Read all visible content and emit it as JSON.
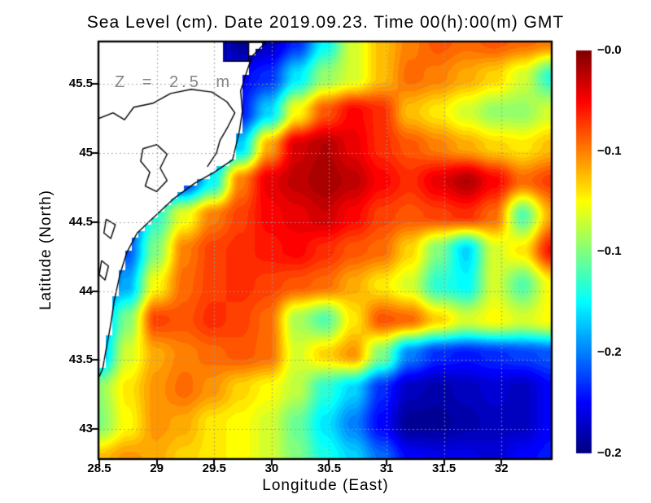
{
  "window": {
    "background": "#ffffff"
  },
  "chart_data": {
    "type": "heatmap",
    "title": "Sea Level (cm). Date 2019.09.23. Time 00(h):00(m) GMT",
    "annotation": "Z = 2.5 m",
    "xlabel": "Longitude (East)",
    "ylabel": "Latitude (North)",
    "x_axis": {
      "range": [
        28.5,
        32.43
      ],
      "ticks": [
        {
          "v": 28.5,
          "label": "28.5"
        },
        {
          "v": 29,
          "label": "29"
        },
        {
          "v": 29.5,
          "label": "29.5"
        },
        {
          "v": 30,
          "label": "30"
        },
        {
          "v": 30.5,
          "label": "30.5"
        },
        {
          "v": 31,
          "label": "31"
        },
        {
          "v": 31.5,
          "label": "31.5"
        },
        {
          "v": 32,
          "label": "32"
        }
      ]
    },
    "y_axis": {
      "range": [
        42.79,
        45.8
      ],
      "ticks": [
        {
          "v": 43,
          "label": "43"
        },
        {
          "v": 43.5,
          "label": "43.5"
        },
        {
          "v": 44,
          "label": "44"
        },
        {
          "v": 44.5,
          "label": "44.5"
        },
        {
          "v": 45,
          "label": "45"
        },
        {
          "v": 45.5,
          "label": "45.5"
        }
      ]
    },
    "colorbar": {
      "labels": [
        "−0.0",
        "−0.1",
        "−0.1",
        "−0.2",
        "−0.2"
      ],
      "vmin": -0.24,
      "vmax": 0,
      "colormap": "jet"
    },
    "grid": {
      "ncols": 17,
      "nrows": 13,
      "lon_range": [
        28.5,
        32.43
      ],
      "lat_range": [
        45.8,
        42.79
      ],
      "values": [
        [
          -0.21,
          -0.21,
          -0.21,
          -0.21,
          -0.21,
          -0.235,
          -0.225,
          -0.2,
          -0.15,
          -0.1,
          -0.075,
          -0.06,
          -0.05,
          -0.055,
          -0.05,
          -0.055,
          -0.06
        ],
        [
          -0.21,
          -0.21,
          -0.21,
          -0.21,
          -0.21,
          -0.21,
          -0.2,
          -0.155,
          -0.115,
          -0.1,
          -0.075,
          -0.055,
          -0.06,
          -0.07,
          -0.08,
          -0.1,
          -0.14
        ],
        [
          -0.21,
          -0.21,
          -0.21,
          -0.21,
          -0.21,
          -0.205,
          -0.16,
          -0.09,
          -0.05,
          -0.03,
          -0.04,
          -0.075,
          -0.085,
          -0.1,
          -0.115,
          -0.115,
          -0.1
        ],
        [
          -0.2,
          -0.2,
          -0.2,
          -0.2,
          -0.2,
          -0.16,
          -0.07,
          -0.02,
          -0.012,
          -0.025,
          -0.04,
          -0.05,
          -0.06,
          -0.07,
          -0.08,
          -0.085,
          -0.075
        ],
        [
          -0.2,
          -0.2,
          -0.2,
          -0.2,
          -0.15,
          -0.06,
          -0.025,
          -0.015,
          -0.008,
          -0.015,
          -0.03,
          -0.04,
          -0.025,
          -0.012,
          -0.03,
          -0.055,
          -0.045
        ],
        [
          -0.2,
          -0.2,
          -0.14,
          -0.095,
          -0.06,
          -0.045,
          -0.03,
          -0.025,
          -0.018,
          -0.03,
          -0.045,
          -0.05,
          -0.045,
          -0.04,
          -0.055,
          -0.13,
          -0.07
        ],
        [
          -0.2,
          -0.19,
          -0.12,
          -0.06,
          -0.045,
          -0.04,
          -0.035,
          -0.03,
          -0.04,
          -0.05,
          -0.055,
          -0.08,
          -0.12,
          -0.16,
          -0.1,
          -0.085,
          -0.035
        ],
        [
          -0.19,
          -0.17,
          -0.09,
          -0.055,
          -0.045,
          -0.04,
          -0.045,
          -0.05,
          -0.055,
          -0.07,
          -0.085,
          -0.1,
          -0.14,
          -0.15,
          -0.1,
          -0.13,
          -0.09
        ],
        [
          -0.18,
          -0.12,
          -0.045,
          -0.05,
          -0.04,
          -0.045,
          -0.055,
          -0.11,
          -0.13,
          -0.085,
          -0.05,
          -0.055,
          -0.08,
          -0.1,
          -0.09,
          -0.1,
          -0.09
        ],
        [
          -0.17,
          -0.1,
          -0.07,
          -0.06,
          -0.055,
          -0.05,
          -0.055,
          -0.1,
          -0.08,
          -0.065,
          -0.12,
          -0.18,
          -0.2,
          -0.205,
          -0.2,
          -0.195,
          -0.19
        ],
        [
          -0.115,
          -0.085,
          -0.065,
          -0.055,
          -0.065,
          -0.08,
          -0.09,
          -0.105,
          -0.14,
          -0.16,
          -0.2,
          -0.225,
          -0.23,
          -0.225,
          -0.22,
          -0.225,
          -0.21
        ],
        [
          -0.12,
          -0.09,
          -0.065,
          -0.07,
          -0.085,
          -0.09,
          -0.1,
          -0.125,
          -0.155,
          -0.18,
          -0.21,
          -0.235,
          -0.235,
          -0.23,
          -0.225,
          -0.225,
          -0.21
        ],
        [
          -0.075,
          -0.065,
          -0.07,
          -0.08,
          -0.085,
          -0.09,
          -0.1,
          -0.12,
          -0.145,
          -0.16,
          -0.185,
          -0.21,
          -0.215,
          -0.215,
          -0.22,
          -0.21,
          -0.205
        ]
      ]
    },
    "coastline": {
      "land_polygon": [
        [
          28.5,
          45.8
        ],
        [
          29.6,
          45.8
        ],
        [
          29.6,
          45.665
        ],
        [
          29.8,
          45.665
        ],
        [
          29.8,
          45.8
        ],
        [
          29.95,
          45.8
        ],
        [
          29.83,
          45.7
        ],
        [
          29.78,
          45.58
        ],
        [
          29.73,
          45.45
        ],
        [
          29.745,
          45.3
        ],
        [
          29.72,
          45.16
        ],
        [
          29.66,
          44.95
        ],
        [
          29.5,
          44.86
        ],
        [
          29.33,
          44.78
        ],
        [
          29.15,
          44.67
        ],
        [
          28.97,
          44.53
        ],
        [
          28.83,
          44.42
        ],
        [
          28.74,
          44.28
        ],
        [
          28.68,
          44.12
        ],
        [
          28.63,
          43.93
        ],
        [
          28.6,
          43.76
        ],
        [
          28.56,
          43.58
        ],
        [
          28.53,
          43.44
        ],
        [
          28.5,
          43.38
        ]
      ],
      "inner_lines": [
        [
          [
            28.5,
            45.25
          ],
          [
            28.62,
            45.29
          ],
          [
            28.72,
            45.24
          ],
          [
            28.8,
            45.33
          ],
          [
            28.97,
            45.36
          ],
          [
            29.12,
            45.43
          ],
          [
            29.3,
            45.46
          ],
          [
            29.48,
            45.44
          ],
          [
            29.61,
            45.37
          ],
          [
            29.68,
            45.29
          ],
          [
            29.62,
            45.19
          ],
          [
            29.55,
            45.09
          ],
          [
            29.52,
            45.0
          ],
          [
            29.44,
            44.9
          ]
        ],
        [
          [
            28.88,
            45.03
          ],
          [
            29.0,
            45.06
          ],
          [
            29.09,
            44.99
          ],
          [
            29.03,
            44.89
          ],
          [
            29.09,
            44.8
          ],
          [
            29.0,
            44.72
          ],
          [
            28.9,
            44.76
          ],
          [
            28.94,
            44.86
          ],
          [
            28.86,
            44.94
          ],
          [
            28.88,
            45.03
          ]
        ],
        [
          [
            28.56,
            44.52
          ],
          [
            28.64,
            44.48
          ],
          [
            28.6,
            44.38
          ],
          [
            28.54,
            44.42
          ],
          [
            28.56,
            44.52
          ]
        ],
        [
          [
            28.52,
            44.22
          ],
          [
            28.58,
            44.18
          ],
          [
            28.55,
            44.08
          ],
          [
            28.5,
            44.12
          ],
          [
            28.52,
            44.22
          ]
        ]
      ]
    },
    "style": {
      "grid_color": "#9a9a9a",
      "land_color": "#ffffff",
      "coast_color": "#000000",
      "frame_color": "#000000",
      "annotation_color": "#848484"
    }
  }
}
